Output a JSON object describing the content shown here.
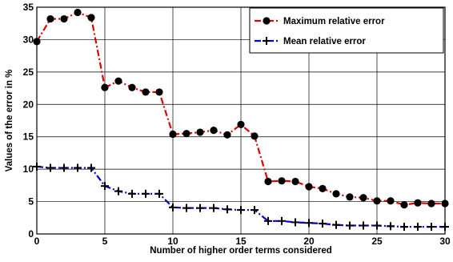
{
  "chart_data": {
    "type": "line",
    "title": "",
    "xlabel": "Number of higher order terms considered",
    "ylabel": "Values of the error in %",
    "xlim": [
      0,
      30
    ],
    "ylim": [
      0,
      35
    ],
    "xticks": [
      0,
      5,
      10,
      15,
      20,
      25,
      30
    ],
    "yticks": [
      0,
      5,
      10,
      15,
      20,
      25,
      30,
      35
    ],
    "grid": true,
    "legend_position": "top-right",
    "x": [
      0,
      1,
      2,
      3,
      4,
      5,
      6,
      7,
      8,
      9,
      10,
      11,
      12,
      13,
      14,
      15,
      16,
      17,
      18,
      19,
      20,
      21,
      22,
      23,
      24,
      25,
      26,
      27,
      28,
      29,
      30
    ],
    "series": [
      {
        "name": "Maximum relative error",
        "color": "#e00000",
        "line_style": "dash-dot",
        "marker": "filled-circle",
        "values": [
          29.7,
          33.2,
          33.2,
          34.2,
          33.4,
          22.6,
          23.6,
          22.6,
          21.9,
          21.9,
          15.4,
          15.5,
          15.7,
          16.0,
          15.3,
          16.9,
          15.1,
          8.1,
          8.2,
          8.1,
          7.3,
          7.0,
          6.2,
          5.7,
          5.6,
          5.1,
          5.1,
          4.5,
          4.8,
          4.7,
          4.7
        ]
      },
      {
        "name": "Mean relative error",
        "color": "#0000d0",
        "line_style": "dash-dot",
        "marker": "plus",
        "values": [
          10.4,
          10.2,
          10.2,
          10.2,
          10.2,
          7.4,
          6.6,
          6.2,
          6.2,
          6.2,
          4.1,
          4.0,
          4.0,
          4.0,
          3.8,
          3.7,
          3.7,
          2.0,
          2.0,
          1.8,
          1.7,
          1.6,
          1.4,
          1.3,
          1.3,
          1.3,
          1.2,
          1.1,
          1.1,
          1.1,
          1.1
        ]
      }
    ]
  }
}
